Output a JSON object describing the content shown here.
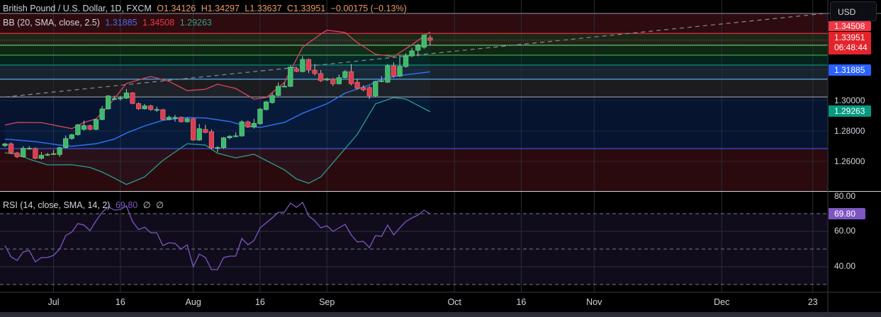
{
  "header": {
    "symbol": "British Pound / U.S. Dollar, 1D, FXCM",
    "open": "O1.34126",
    "high": "H1.34297",
    "low": "L1.33637",
    "close": "C1.33951",
    "change": "−0.00175 (−0.13%)"
  },
  "bb_legend": {
    "label": "BB (20, SMA, close, 2.5)",
    "basis": "1.31885",
    "upper": "1.34508",
    "lower": "1.29263"
  },
  "rsi_legend": {
    "label": "RSI (14, close, SMA, 14, 2)",
    "value": "69.80",
    "na1": "∅",
    "na2": "∅"
  },
  "currency_button": "USD",
  "price_tags": {
    "upper": "1.34508",
    "last": "1.33951",
    "countdown": "06:48:44",
    "basis": "1.31885",
    "lower": "1.29263",
    "rsi": "69.80"
  },
  "price_axis": [
    "1.30000",
    "1.28000",
    "1.26000"
  ],
  "rsi_axis": [
    "80.00",
    "60.00",
    "40.00"
  ],
  "colors": {
    "up": "#3fb86c",
    "down": "#d9404f",
    "bb_basis": "#2f6ef0",
    "bb_upper": "#e0455a",
    "bb_lower": "#2a9d8f",
    "rsi": "#7e57c2",
    "last_price": "#e3242b"
  },
  "chart_data": [
    {
      "type": "candlestick",
      "title": "British Pound / U.S. Dollar, 1D, FXCM",
      "ylim": [
        1.2405,
        1.3572
      ],
      "grid": true,
      "x_ticks": [
        {
          "label": "Jul",
          "bar": 8
        },
        {
          "label": "16",
          "bar": 19
        },
        {
          "label": "Aug",
          "bar": 31
        },
        {
          "label": "16",
          "bar": 42
        },
        {
          "label": "Sep",
          "bar": 53
        },
        {
          "label": "Oct",
          "bar": 74
        },
        {
          "label": "16",
          "bar": 85
        },
        {
          "label": "Nov",
          "bar": 97
        },
        {
          "label": "Dec",
          "bar": 118
        },
        {
          "label": "23",
          "bar": 133
        }
      ],
      "y_ticks": [
        1.26,
        1.28,
        1.3,
        1.32,
        1.34
      ],
      "ohlc": [
        [
          1.2703,
          1.2722,
          1.2695,
          1.2715
        ],
        [
          1.2716,
          1.2725,
          1.265,
          1.2656
        ],
        [
          1.2656,
          1.2662,
          1.2622,
          1.263
        ],
        [
          1.263,
          1.27,
          1.2625,
          1.2686
        ],
        [
          1.2684,
          1.27,
          1.2676,
          1.2686
        ],
        [
          1.2685,
          1.2692,
          1.2614,
          1.262
        ],
        [
          1.262,
          1.266,
          1.2612,
          1.264
        ],
        [
          1.2645,
          1.2655,
          1.2636,
          1.2646
        ],
        [
          1.265,
          1.2675,
          1.2642,
          1.2651
        ],
        [
          1.2645,
          1.2695,
          1.263,
          1.269
        ],
        [
          1.269,
          1.277,
          1.2685,
          1.275
        ],
        [
          1.275,
          1.2782,
          1.2742,
          1.2775
        ],
        [
          1.2775,
          1.2846,
          1.277,
          1.284
        ],
        [
          1.281,
          1.2868,
          1.2803,
          1.2835
        ],
        [
          1.2835,
          1.2842,
          1.2804,
          1.281
        ],
        [
          1.281,
          1.288,
          1.2805,
          1.2875
        ],
        [
          1.2875,
          1.2965,
          1.287,
          1.2945
        ],
        [
          1.2945,
          1.3035,
          1.294,
          1.303
        ],
        [
          1.301,
          1.3032,
          1.3003,
          1.3012
        ],
        [
          1.3014,
          1.303,
          1.3,
          1.3016
        ],
        [
          1.3015,
          1.3075,
          1.301,
          1.305
        ],
        [
          1.305,
          1.3055,
          1.2975,
          1.298
        ],
        [
          1.298,
          1.2988,
          1.2938,
          1.2945
        ],
        [
          1.2945,
          1.2978,
          1.294,
          1.2965
        ],
        [
          1.2965,
          1.2972,
          1.2932,
          1.294
        ],
        [
          1.294,
          1.296,
          1.2925,
          1.2941
        ],
        [
          1.294,
          1.2945,
          1.287,
          1.2875
        ],
        [
          1.2875,
          1.29,
          1.287,
          1.289
        ],
        [
          1.2888,
          1.2905,
          1.286,
          1.2889
        ],
        [
          1.289,
          1.2895,
          1.2855,
          1.286
        ],
        [
          1.286,
          1.289,
          1.2855,
          1.288
        ],
        [
          1.288,
          1.2885,
          1.2735,
          1.274
        ],
        [
          1.274,
          1.2845,
          1.2735,
          1.2815
        ],
        [
          1.281,
          1.284,
          1.2785,
          1.279
        ],
        [
          1.2795,
          1.281,
          1.268,
          1.269
        ],
        [
          1.269,
          1.27,
          1.266,
          1.2691
        ],
        [
          1.269,
          1.276,
          1.2682,
          1.2755
        ],
        [
          1.2755,
          1.2772,
          1.2745,
          1.2765
        ],
        [
          1.2767,
          1.279,
          1.276,
          1.2768
        ],
        [
          1.2767,
          1.287,
          1.2762,
          1.286
        ],
        [
          1.286,
          1.2868,
          1.282,
          1.2825
        ],
        [
          1.2825,
          1.288,
          1.2815,
          1.285
        ],
        [
          1.2847,
          1.295,
          1.2842,
          1.2944
        ],
        [
          1.294,
          1.2997,
          1.2935,
          1.2991
        ],
        [
          1.2986,
          1.305,
          1.298,
          1.3033
        ],
        [
          1.3033,
          1.3118,
          1.3028,
          1.3093
        ],
        [
          1.3093,
          1.312,
          1.3088,
          1.3094
        ],
        [
          1.3093,
          1.323,
          1.3088,
          1.3219
        ],
        [
          1.3209,
          1.322,
          1.3186,
          1.3191
        ],
        [
          1.319,
          1.329,
          1.3185,
          1.327
        ],
        [
          1.327,
          1.3275,
          1.318,
          1.32
        ],
        [
          1.32,
          1.324,
          1.3165,
          1.3177
        ],
        [
          1.3177,
          1.32,
          1.3122,
          1.313
        ],
        [
          1.3135,
          1.315,
          1.3128,
          1.3142
        ],
        [
          1.314,
          1.3148,
          1.3095,
          1.311
        ],
        [
          1.311,
          1.317,
          1.3105,
          1.315
        ],
        [
          1.315,
          1.32,
          1.3145,
          1.319
        ],
        [
          1.319,
          1.324,
          1.31,
          1.311
        ],
        [
          1.312,
          1.3142,
          1.3072,
          1.308
        ],
        [
          1.3085,
          1.31,
          1.306,
          1.307
        ],
        [
          1.3085,
          1.3095,
          1.301,
          1.303
        ],
        [
          1.303,
          1.313,
          1.3022,
          1.3125
        ],
        [
          1.3128,
          1.316,
          1.312,
          1.313
        ],
        [
          1.312,
          1.324,
          1.3115,
          1.3228
        ],
        [
          1.3228,
          1.325,
          1.315,
          1.316
        ],
        [
          1.316,
          1.33,
          1.3155,
          1.3225
        ],
        [
          1.3223,
          1.331,
          1.3215,
          1.3293
        ],
        [
          1.3293,
          1.3345,
          1.3285,
          1.3326
        ],
        [
          1.333,
          1.3372,
          1.329,
          1.336
        ],
        [
          1.335,
          1.3435,
          1.334,
          1.343
        ],
        [
          1.34126,
          1.34297,
          1.33637,
          1.33951
        ]
      ],
      "bollinger": {
        "basis": [
          [
            0,
            1.2746
          ],
          [
            5,
            1.273
          ],
          [
            9,
            1.2707
          ],
          [
            11,
            1.2699
          ],
          [
            15,
            1.2716
          ],
          [
            18,
            1.2746
          ],
          [
            20,
            1.2786
          ],
          [
            23,
            1.2833
          ],
          [
            26,
            1.287
          ],
          [
            30,
            1.2888
          ],
          [
            33,
            1.2885
          ],
          [
            37,
            1.2862
          ],
          [
            39,
            1.2839
          ],
          [
            42,
            1.2823
          ],
          [
            46,
            1.2856
          ],
          [
            49,
            1.2916
          ],
          [
            53,
            1.2978
          ],
          [
            56,
            1.3048
          ],
          [
            60,
            1.3102
          ],
          [
            62,
            1.3141
          ],
          [
            65,
            1.3164
          ],
          [
            70,
            1.31885
          ]
        ],
        "upper": [
          [
            0,
            1.2839
          ],
          [
            2,
            1.2856
          ],
          [
            6,
            1.2855
          ],
          [
            11,
            1.2815
          ],
          [
            13,
            1.2856
          ],
          [
            15,
            1.2879
          ],
          [
            17,
            1.2963
          ],
          [
            20,
            1.3112
          ],
          [
            24,
            1.3158
          ],
          [
            27,
            1.3126
          ],
          [
            30,
            1.3065
          ],
          [
            33,
            1.3074
          ],
          [
            35,
            1.3107
          ],
          [
            38,
            1.3079
          ],
          [
            41,
            1.3009
          ],
          [
            43,
            1.3019
          ],
          [
            46,
            1.3118
          ],
          [
            49,
            1.335
          ],
          [
            52,
            1.3437
          ],
          [
            53,
            1.3462
          ],
          [
            56,
            1.3447
          ],
          [
            58,
            1.3381
          ],
          [
            61,
            1.3304
          ],
          [
            64,
            1.3288
          ],
          [
            67,
            1.3367
          ],
          [
            70,
            1.34508
          ]
        ],
        "lower": [
          [
            0,
            1.2656
          ],
          [
            2,
            1.2647
          ],
          [
            4,
            1.2614
          ],
          [
            7,
            1.2577
          ],
          [
            9,
            1.2577
          ],
          [
            11,
            1.2578
          ],
          [
            14,
            1.256
          ],
          [
            16,
            1.253
          ],
          [
            18,
            1.249
          ],
          [
            20,
            1.2448
          ],
          [
            23,
            1.2498
          ],
          [
            26,
            1.2606
          ],
          [
            30,
            1.2716
          ],
          [
            33,
            1.2707
          ],
          [
            35,
            1.2653
          ],
          [
            38,
            1.2623
          ],
          [
            41,
            1.2647
          ],
          [
            46,
            1.2544
          ],
          [
            48,
            1.2484
          ],
          [
            50,
            1.2456
          ],
          [
            52,
            1.2498
          ],
          [
            55,
            1.2637
          ],
          [
            58,
            1.2777
          ],
          [
            61,
            1.2978
          ],
          [
            64,
            1.3019
          ],
          [
            66,
            1.3009
          ],
          [
            70,
            1.29263
          ]
        ]
      },
      "levels": [
        {
          "price": 1.3572,
          "color": "#787b86",
          "zone_below": "#2d0b0f"
        },
        {
          "price": 1.3441,
          "color": "#f23645",
          "zone_below": "#1b2716"
        },
        {
          "price": 1.3363,
          "color": "#81c784",
          "zone_below": "#0f2612"
        },
        {
          "price": 1.3298,
          "color": "#4caf50",
          "zone_below": "#04221c"
        },
        {
          "price": 1.3233,
          "color": "#089981",
          "zone_below": "#17232f"
        },
        {
          "price": 1.314,
          "color": "#64b5f6",
          "zone_below": "#1c1c1e"
        },
        {
          "price": 1.3023,
          "color": "#9e9e9e",
          "zone_below": "#061430"
        },
        {
          "price": 1.2684,
          "color": "#3f51d5",
          "zone_below": "#2b0a0e"
        }
      ],
      "trendline": {
        "style": "dashed",
        "from": [
          0,
          1.3023
        ],
        "to": [
          135,
          1.3572
        ]
      }
    },
    {
      "type": "line",
      "title": "RSI (14, close, SMA, 14, 2)",
      "ylim": [
        25.6,
        82.4
      ],
      "bands": [
        70,
        50,
        30
      ],
      "y_ticks": [
        80,
        60,
        40
      ],
      "values": [
        52,
        45.6,
        43.6,
        48.4,
        49.2,
        42.8,
        45.2,
        45.2,
        46.4,
        50,
        57.6,
        59.6,
        64.4,
        63.6,
        60.4,
        66,
        70.8,
        74,
        72,
        72.4,
        74.4,
        65.6,
        61,
        62.4,
        59.2,
        59.2,
        52,
        53.6,
        53.2,
        50,
        52.4,
        40,
        47.2,
        45.2,
        38.4,
        38.4,
        45.2,
        46,
        46,
        56,
        52.4,
        54.8,
        62,
        64.8,
        67.6,
        70.8,
        70.8,
        76,
        73.6,
        76.4,
        68.8,
        66,
        62,
        63.2,
        60,
        62,
        64,
        58,
        54,
        54.4,
        50.8,
        57.6,
        57.2,
        63.6,
        58,
        62,
        65.6,
        67.6,
        69.2,
        72,
        69.8
      ]
    }
  ]
}
